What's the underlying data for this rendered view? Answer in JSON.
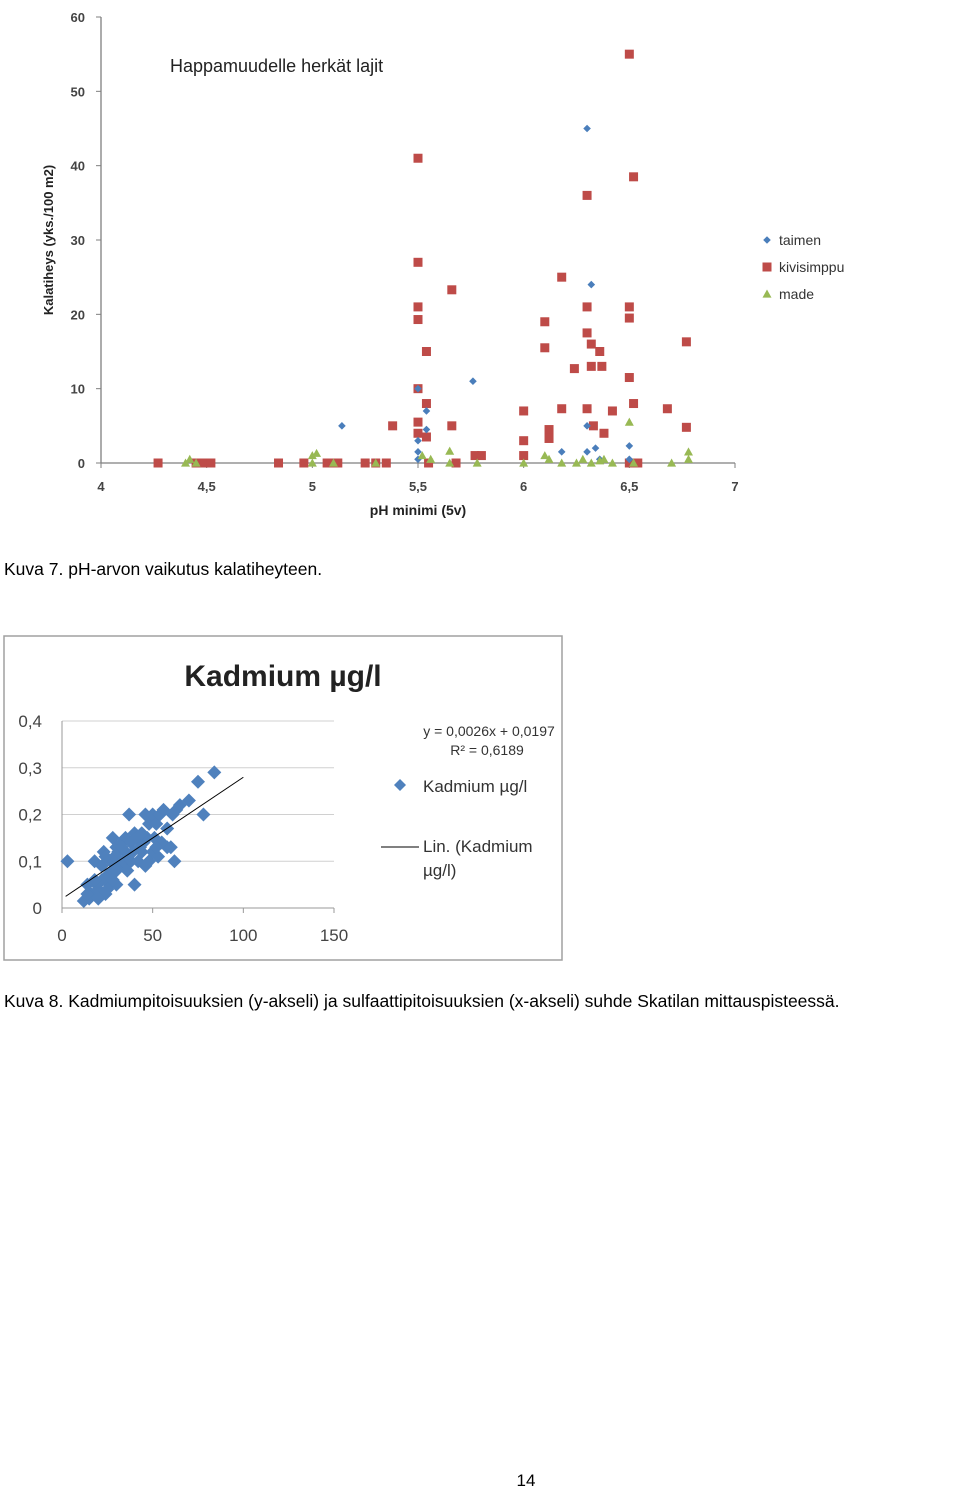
{
  "figure1": {
    "chart_data": {
      "type": "scatter",
      "title": "Happamuudelle herkät lajit",
      "xlabel": "pH minimi (5v)",
      "ylabel": "Kalatiheys (yks./100 m2)",
      "xlim": [
        4,
        7
      ],
      "ylim": [
        0,
        60
      ],
      "xticks": [
        "4",
        "4,5",
        "5",
        "5,5",
        "6",
        "6,5",
        "7"
      ],
      "yticks": [
        "0",
        "10",
        "20",
        "30",
        "40",
        "50",
        "60"
      ],
      "legend_position": "right",
      "colors": {
        "taimen": "#4a7ebb",
        "kivisimppu": "#be4b48",
        "made": "#98b954"
      },
      "series": [
        {
          "name": "taimen",
          "marker": "diamond",
          "x": [
            5.14,
            5.5,
            5.5,
            5.54,
            5.54,
            5.5,
            5.76,
            6.18,
            6.3,
            6.32,
            6.3,
            6.3,
            6.34,
            6.5,
            6.5,
            6.36,
            5.5
          ],
          "y": [
            5,
            10,
            3,
            7,
            4.5,
            1.5,
            11,
            1.5,
            45,
            24,
            5,
            1.5,
            2,
            2.3,
            0.5,
            0.5,
            0.5
          ]
        },
        {
          "name": "kivisimppu",
          "marker": "square",
          "x": [
            4.27,
            4.45,
            4.49,
            4.52,
            4.84,
            4.96,
            5.07,
            5.1,
            5.12,
            5.25,
            5.3,
            5.35,
            5.38,
            5.5,
            5.5,
            5.5,
            5.5,
            5.5,
            5.5,
            5.5,
            5.54,
            5.54,
            5.54,
            5.66,
            5.66,
            5.68,
            5.77,
            5.8,
            6.0,
            6.0,
            6.0,
            6.1,
            6.1,
            6.12,
            6.12,
            6.18,
            6.18,
            6.24,
            6.3,
            6.3,
            6.3,
            6.3,
            6.32,
            6.32,
            6.33,
            6.36,
            6.37,
            6.38,
            6.42,
            6.5,
            6.5,
            6.5,
            6.5,
            6.52,
            6.52,
            6.54,
            6.68,
            6.77,
            6.77,
            6.5,
            5.12,
            5.55
          ],
          "y": [
            0,
            0,
            0,
            0,
            0,
            0,
            0,
            0,
            0,
            0,
            0,
            0,
            5,
            41,
            27,
            21,
            19.3,
            10,
            5.5,
            4,
            15,
            8,
            3.5,
            23.3,
            5,
            0,
            1,
            1,
            7,
            3,
            1,
            19,
            15.5,
            4.5,
            3.3,
            25,
            7.3,
            12.7,
            36,
            21,
            17.5,
            7.3,
            16,
            13,
            5,
            15,
            13,
            4,
            7,
            55,
            21,
            19.5,
            11.5,
            38.5,
            8,
            0,
            7.3,
            16.3,
            4.8,
            0,
            0,
            0
          ]
        },
        {
          "name": "made",
          "marker": "triangle",
          "x": [
            4.4,
            4.42,
            4.45,
            5.0,
            5.0,
            5.02,
            5.1,
            5.3,
            5.52,
            5.56,
            5.65,
            5.65,
            5.78,
            6.0,
            6.1,
            6.12,
            6.18,
            6.25,
            6.28,
            6.32,
            6.36,
            6.38,
            6.42,
            6.5,
            6.52,
            6.7,
            6.78,
            6.78
          ],
          "y": [
            0,
            0.5,
            0,
            0,
            1,
            1.3,
            0,
            0,
            1,
            0.5,
            1.6,
            0,
            0,
            0,
            1,
            0.5,
            0,
            0,
            0.5,
            0,
            0.3,
            0.5,
            0,
            5.5,
            0,
            0,
            1.5,
            0.5
          ]
        }
      ]
    }
  },
  "figure2": {
    "chart_data": {
      "type": "scatter",
      "title": "Kadmium µg/l",
      "xlabel": "",
      "ylabel": "",
      "xlim": [
        0,
        150
      ],
      "ylim": [
        0,
        0.4
      ],
      "xticks": [
        "0",
        "50",
        "100",
        "150"
      ],
      "yticks": [
        "0",
        "0,1",
        "0,2",
        "0,3",
        "0,4"
      ],
      "legend_position": "right",
      "colors": {
        "marker": "#4f81bd",
        "trendline": "#000000"
      },
      "trendline": {
        "slope": 0.0026,
        "intercept": 0.0197,
        "x_range": [
          2,
          100
        ]
      },
      "equation": "y = 0,0026x + 0,0197",
      "r2": "R² = 0,6189",
      "legend": [
        "Kadmium µg/l",
        "Lin. (Kadmium",
        "µg/l)"
      ],
      "series": [
        {
          "name": "Kadmium µg/l",
          "marker": "diamond",
          "x": [
            3,
            12,
            14,
            15,
            16,
            18,
            19,
            20,
            22,
            23,
            24,
            25,
            26,
            27,
            28,
            28,
            29,
            30,
            30,
            31,
            32,
            33,
            34,
            35,
            35,
            36,
            37,
            38,
            38,
            39,
            40,
            40,
            41,
            42,
            43,
            44,
            45,
            46,
            47,
            48,
            48,
            50,
            50,
            51,
            52,
            53,
            54,
            55,
            56,
            58,
            58,
            60,
            61,
            62,
            63,
            65,
            70,
            75,
            78,
            84,
            20,
            25,
            30,
            18,
            22,
            14,
            24,
            28,
            33,
            36,
            44,
            46,
            52
          ],
          "y": [
            0.1,
            0.015,
            0.05,
            0.02,
            0.03,
            0.1,
            0.05,
            0.04,
            0.06,
            0.12,
            0.03,
            0.07,
            0.05,
            0.1,
            0.15,
            0.08,
            0.11,
            0.13,
            0.05,
            0.12,
            0.09,
            0.14,
            0.1,
            0.15,
            0.12,
            0.08,
            0.2,
            0.14,
            0.1,
            0.12,
            0.05,
            0.16,
            0.15,
            0.1,
            0.13,
            0.12,
            0.14,
            0.2,
            0.15,
            0.1,
            0.18,
            0.12,
            0.2,
            0.15,
            0.18,
            0.11,
            0.2,
            0.14,
            0.21,
            0.17,
            0.13,
            0.13,
            0.2,
            0.1,
            0.21,
            0.22,
            0.23,
            0.27,
            0.2,
            0.29,
            0.02,
            0.04,
            0.08,
            0.06,
            0.09,
            0.03,
            0.11,
            0.06,
            0.13,
            0.11,
            0.16,
            0.09,
            0.13
          ]
        }
      ]
    }
  },
  "captions": {
    "fig1": "Kuva 7. pH-arvon vaikutus kalatiheyteen.",
    "fig2": "Kuva 8. Kadmiumpitoisuuksien (y-akseli) ja sulfaattipitoisuuksien (x-akseli) suhde Skatilan mittauspisteessä."
  },
  "page_number": "14"
}
